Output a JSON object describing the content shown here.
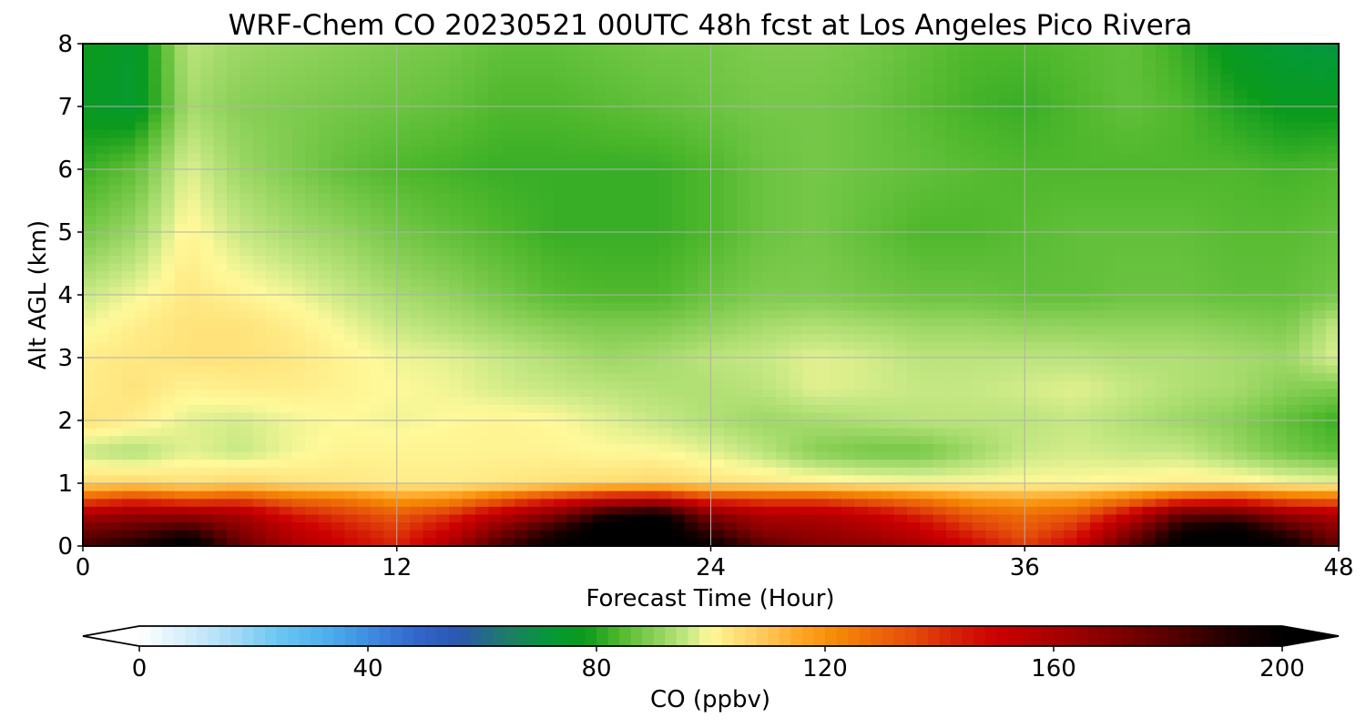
{
  "chart_data": {
    "type": "heatmap",
    "title": "WRF-Chem CO  20230521 00UTC 48h fcst at Los Angeles Pico Rivera",
    "xlabel": "Forecast Time (Hour)",
    "ylabel": "Alt AGL (km)",
    "xlim": [
      0,
      48
    ],
    "ylim": [
      0,
      8
    ],
    "xticks": [
      0,
      12,
      24,
      36,
      48
    ],
    "yticks": [
      0,
      1,
      2,
      3,
      4,
      5,
      6,
      7,
      8
    ],
    "grid": true,
    "x": [
      0,
      2,
      4,
      6,
      8,
      10,
      12,
      14,
      16,
      18,
      20,
      22,
      24,
      26,
      28,
      30,
      32,
      34,
      36,
      38,
      40,
      42,
      44,
      46,
      48
    ],
    "y": [
      0,
      0.25,
      0.5,
      0.75,
      1.0,
      1.5,
      2.0,
      2.5,
      3.0,
      3.5,
      4.0,
      5.0,
      6.0,
      7.0,
      8.0
    ],
    "z": [
      [
        185,
        192,
        205,
        178,
        160,
        150,
        142,
        160,
        185,
        198,
        205,
        205,
        198,
        180,
        170,
        168,
        160,
        148,
        138,
        150,
        180,
        202,
        205,
        198,
        178
      ],
      [
        175,
        180,
        188,
        170,
        155,
        145,
        138,
        150,
        172,
        190,
        205,
        205,
        185,
        168,
        165,
        160,
        152,
        140,
        132,
        142,
        168,
        195,
        202,
        185,
        168
      ],
      [
        160,
        165,
        165,
        160,
        145,
        138,
        132,
        140,
        155,
        170,
        192,
        200,
        170,
        158,
        158,
        152,
        142,
        132,
        128,
        132,
        150,
        178,
        180,
        165,
        158
      ],
      [
        132,
        138,
        132,
        135,
        128,
        125,
        118,
        120,
        130,
        140,
        150,
        152,
        138,
        135,
        135,
        130,
        125,
        118,
        116,
        118,
        125,
        135,
        138,
        130,
        128
      ],
      [
        105,
        106,
        104,
        106,
        104,
        103,
        102,
        102,
        103,
        104,
        105,
        106,
        104,
        103,
        102,
        101,
        100,
        100,
        100,
        100,
        101,
        102,
        102,
        100,
        99
      ],
      [
        96,
        94,
        98,
        96,
        99,
        101,
        101,
        101,
        101,
        101,
        100,
        100,
        98,
        95,
        90,
        88,
        88,
        92,
        96,
        97,
        96,
        96,
        92,
        88,
        85
      ],
      [
        104,
        102,
        98,
        97,
        99,
        100,
        99,
        100,
        101,
        100,
        98,
        96,
        94,
        92,
        93,
        94,
        95,
        95,
        95,
        96,
        94,
        92,
        90,
        86,
        82
      ],
      [
        102,
        104,
        101,
        102,
        102,
        101,
        100,
        99,
        97,
        96,
        95,
        94,
        94,
        95,
        98,
        97,
        96,
        96,
        97,
        98,
        96,
        94,
        93,
        90,
        89
      ],
      [
        102,
        103,
        104,
        104,
        103,
        101,
        99,
        98,
        96,
        94,
        92,
        93,
        95,
        96,
        98,
        97,
        95,
        95,
        95,
        95,
        94,
        94,
        93,
        92,
        98
      ],
      [
        99,
        102,
        104,
        104,
        102,
        99,
        96,
        94,
        92,
        90,
        89,
        89,
        91,
        93,
        94,
        93,
        92,
        92,
        91,
        91,
        91,
        91,
        90,
        89,
        96
      ],
      [
        96,
        99,
        103,
        101,
        99,
        96,
        93,
        91,
        88,
        85,
        84,
        84,
        87,
        89,
        89,
        88,
        87,
        87,
        86,
        86,
        87,
        87,
        86,
        86,
        88
      ],
      [
        88,
        92,
        101,
        96,
        93,
        91,
        88,
        86,
        84,
        82,
        82,
        82,
        84,
        87,
        88,
        86,
        84,
        84,
        85,
        86,
        86,
        86,
        85,
        85,
        86
      ],
      [
        82,
        86,
        98,
        92,
        89,
        86,
        84,
        83,
        82,
        82,
        82,
        82,
        84,
        87,
        88,
        87,
        86,
        85,
        84,
        84,
        84,
        84,
        84,
        83,
        84
      ],
      [
        76,
        74,
        93,
        90,
        89,
        88,
        87,
        86,
        84,
        84,
        85,
        86,
        87,
        88,
        88,
        87,
        85,
        83,
        82,
        84,
        86,
        84,
        80,
        77,
        77
      ],
      [
        78,
        74,
        95,
        92,
        91,
        90,
        89,
        88,
        86,
        86,
        87,
        88,
        88,
        89,
        89,
        88,
        86,
        84,
        84,
        85,
        86,
        82,
        76,
        72,
        70
      ]
    ],
    "colorbar": {
      "label": "CO  (ppbv)",
      "min": 0,
      "max": 200,
      "ticks": [
        0,
        40,
        80,
        120,
        160,
        200
      ],
      "extend": "both",
      "orientation": "horizontal",
      "position": "bottom",
      "colors": [
        [
          0,
          "#ffffff"
        ],
        [
          8,
          "#d6eefa"
        ],
        [
          16,
          "#a8dcf6"
        ],
        [
          24,
          "#6cc7f3"
        ],
        [
          32,
          "#4fb2ee"
        ],
        [
          40,
          "#3e8ee0"
        ],
        [
          48,
          "#3367cc"
        ],
        [
          56,
          "#2a57b0"
        ],
        [
          64,
          "#1f7a6a"
        ],
        [
          72,
          "#049a36"
        ],
        [
          78,
          "#0b9a1c"
        ],
        [
          84,
          "#4fb82c"
        ],
        [
          90,
          "#88cf56"
        ],
        [
          96,
          "#c6e884"
        ],
        [
          100,
          "#fff99a"
        ],
        [
          104,
          "#ffe27a"
        ],
        [
          110,
          "#ffc454"
        ],
        [
          116,
          "#ffa423"
        ],
        [
          122,
          "#f58a05"
        ],
        [
          128,
          "#ee6d08"
        ],
        [
          136,
          "#e2480a"
        ],
        [
          144,
          "#d41a06"
        ],
        [
          150,
          "#cc0000"
        ],
        [
          160,
          "#aa0000"
        ],
        [
          172,
          "#7c0000"
        ],
        [
          184,
          "#460000"
        ],
        [
          192,
          "#1a0000"
        ],
        [
          200,
          "#000000"
        ]
      ]
    }
  }
}
